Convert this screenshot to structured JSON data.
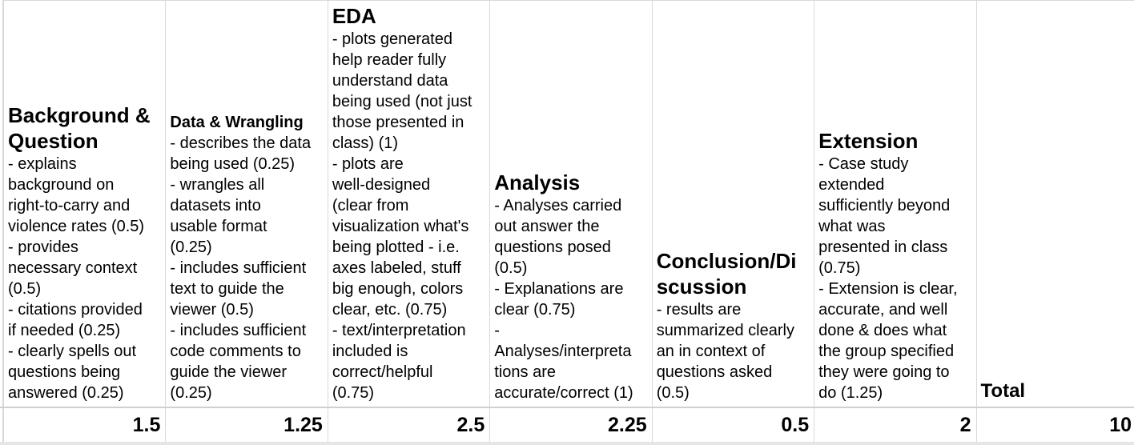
{
  "columns": [
    {
      "title": "Background & Question",
      "title_lines": [
        "Background &",
        "Question"
      ],
      "title_size": "large",
      "lines": [
        "- explains",
        "background on",
        "right-to-carry and",
        "violence rates (0.5)",
        "- provides",
        "necessary context",
        "(0.5)",
        "- citations provided",
        "if needed (0.25)",
        "- clearly spells out",
        "questions being",
        "answered (0.25)"
      ],
      "score": "1.5"
    },
    {
      "title": "Data & Wrangling",
      "title_lines": [
        "Data & Wrangling"
      ],
      "title_size": "small",
      "lines": [
        "- describes the data",
        "being used (0.25)",
        "- wrangles all",
        "datasets into",
        "usable format",
        "(0.25)",
        "- includes sufficient",
        "text to guide the",
        "viewer (0.5)",
        "- includes sufficient",
        "code comments to",
        "guide the viewer",
        "(0.25)"
      ],
      "score": "1.25"
    },
    {
      "title": "EDA",
      "title_lines": [
        "EDA"
      ],
      "title_size": "large",
      "lines": [
        "- plots generated",
        "help reader fully",
        "understand data",
        "being used (not just",
        "those presented in",
        "class) (1)",
        "- plots are",
        "well-designed",
        "(clear from",
        "visualization what's",
        "being plotted - i.e.",
        "axes labeled, stuff",
        "big enough, colors",
        "clear, etc. (0.75)",
        "- text/interpretation",
        "included is",
        "correct/helpful",
        "(0.75)"
      ],
      "score": "2.5"
    },
    {
      "title": "Analysis",
      "title_lines": [
        "Analysis"
      ],
      "title_size": "large",
      "lines": [
        "- Analyses carried",
        "out answer the",
        "questions posed",
        "(0.5)",
        "- Explanations are",
        "clear (0.75)",
        "-",
        "Analyses/interpreta",
        "tions are",
        "accurate/correct (1)"
      ],
      "score": "2.25"
    },
    {
      "title": "Conclusion/Discussion",
      "title_lines": [
        "Conclusion/Di",
        "scussion"
      ],
      "title_size": "large",
      "lines": [
        "- results are",
        "summarized clearly",
        "an in context of",
        "questions asked",
        "(0.5)"
      ],
      "score": "0.5"
    },
    {
      "title": "Extension",
      "title_lines": [
        "Extension"
      ],
      "title_size": "large",
      "lines": [
        "- Case study",
        "extended",
        "sufficiently beyond",
        "what was",
        "presented in class",
        "(0.75)",
        "- Extension is clear,",
        "accurate, and well",
        "done & does what",
        "the group specified",
        "they were going to",
        "do (1.25)"
      ],
      "score": "2"
    },
    {
      "title": "Total",
      "title_lines": [
        "Total"
      ],
      "title_size": "total",
      "lines": [],
      "score": "10"
    }
  ]
}
